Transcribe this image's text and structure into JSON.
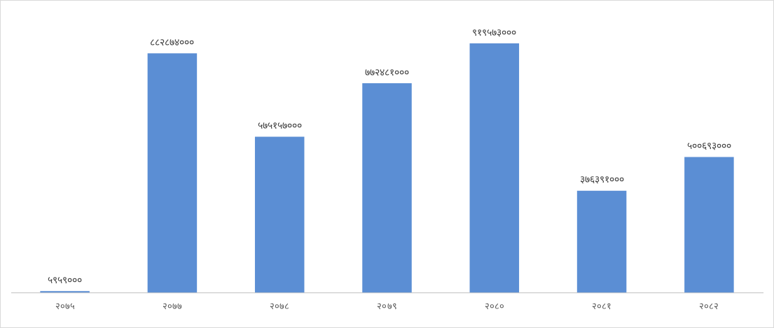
{
  "chart_data": {
    "type": "bar",
    "categories": [
      "२०७५",
      "२०७७",
      "२०७८",
      "२०७९",
      "२०८०",
      "२०८१",
      "२०८२"
    ],
    "values": [
      5959000,
      882874000,
      575157000,
      772481000,
      919573000,
      376391000,
      500693000
    ],
    "value_labels": [
      "५९५९०००",
      "८८२८७४०००",
      "५७५१५७०००",
      "७७२४८१०००",
      "९१९५७३०००",
      "३७६३९१०००",
      "५००६९३०००"
    ],
    "color": "#5b8ed4",
    "grid": false,
    "legend": false
  }
}
